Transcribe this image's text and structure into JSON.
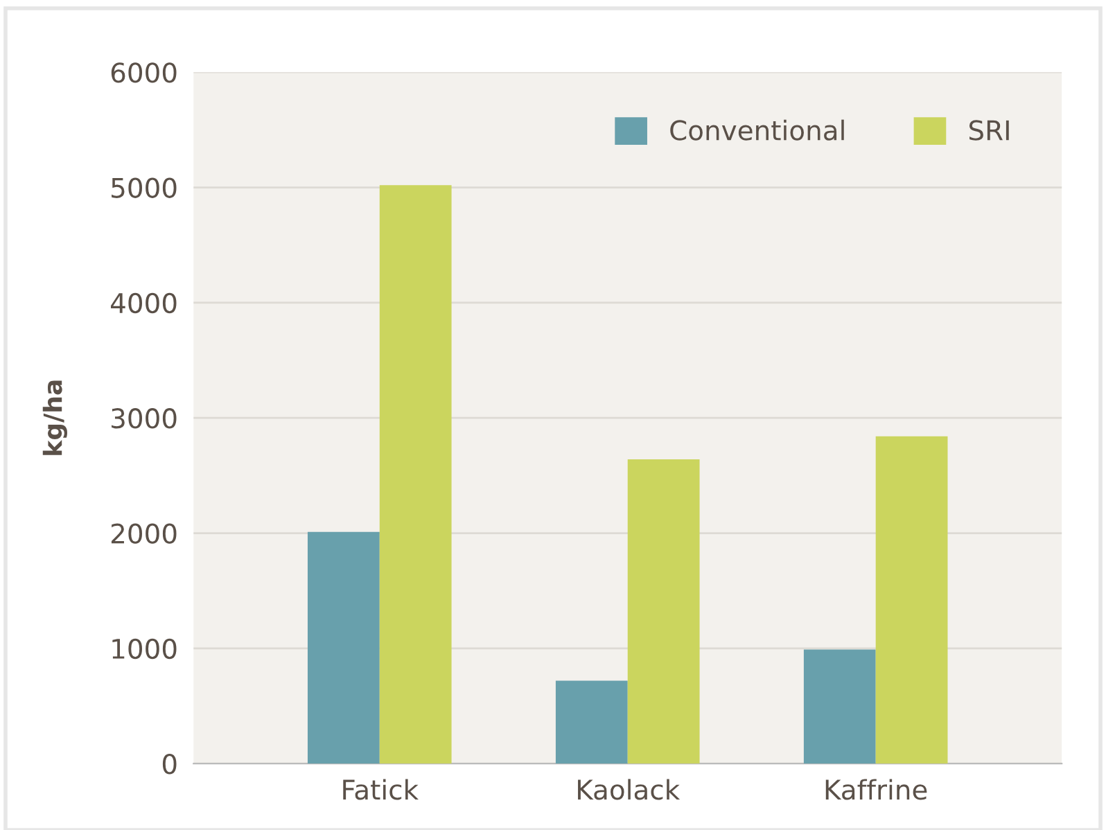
{
  "chart_data": {
    "type": "bar",
    "ylabel": "kg/ha",
    "categories": [
      "Fatick",
      "Kaolack",
      "Kaffrine"
    ],
    "series": [
      {
        "name": "Conventional",
        "color": "#68a0ac",
        "values": [
          2010,
          720,
          990
        ]
      },
      {
        "name": "SRI",
        "color": "#cbd55e",
        "values": [
          5020,
          2640,
          2840
        ]
      }
    ],
    "ylim": [
      0,
      6000
    ],
    "yticks": [
      0,
      1000,
      2000,
      3000,
      4000,
      5000,
      6000
    ],
    "grid": "y",
    "legend": "top right"
  }
}
